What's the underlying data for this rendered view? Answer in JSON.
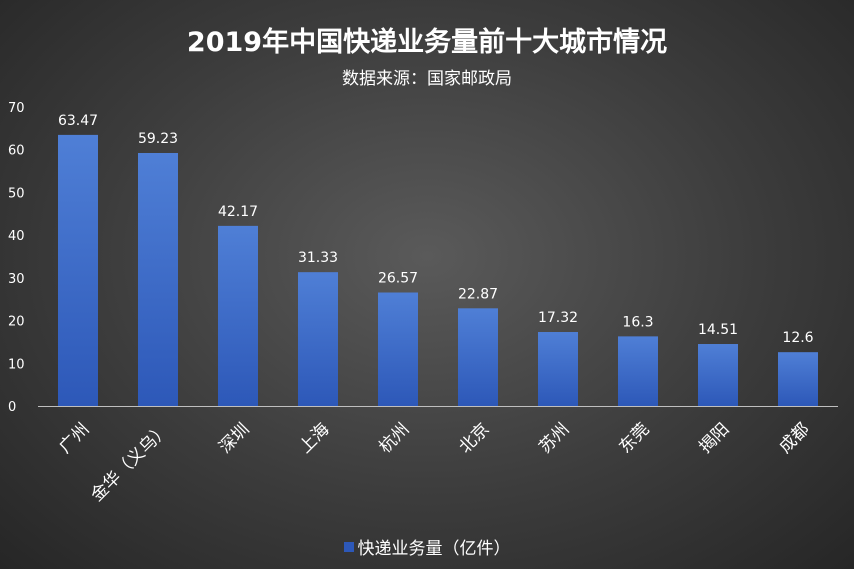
{
  "chart_data": {
    "type": "bar",
    "title": "2019年中国快递业务量前十大城市情况",
    "subtitle": "数据来源：国家邮政局",
    "categories": [
      "广州",
      "金华（义乌）",
      "深圳",
      "上海",
      "杭州",
      "北京",
      "苏州",
      "东莞",
      "揭阳",
      "成都"
    ],
    "series": [
      {
        "name": "快递业务量（亿件）",
        "values": [
          63.47,
          59.23,
          42.17,
          31.33,
          26.57,
          22.87,
          17.32,
          16.3,
          14.51,
          12.6
        ],
        "labels": [
          "63.47",
          "59.23",
          "42.17",
          "31.33",
          "26.57",
          "22.87",
          "17.32",
          "16.3",
          "14.51",
          "12.6"
        ]
      }
    ],
    "ylim": [
      0,
      70
    ],
    "yticks": [
      "0",
      "10",
      "20",
      "30",
      "40",
      "50",
      "60",
      "70"
    ],
    "grid": false,
    "legend": "bottom",
    "colors": {
      "bar_top": "#4f7fd6",
      "bar_bottom": "#2d58b8",
      "axis": "#bfbfbf"
    }
  }
}
